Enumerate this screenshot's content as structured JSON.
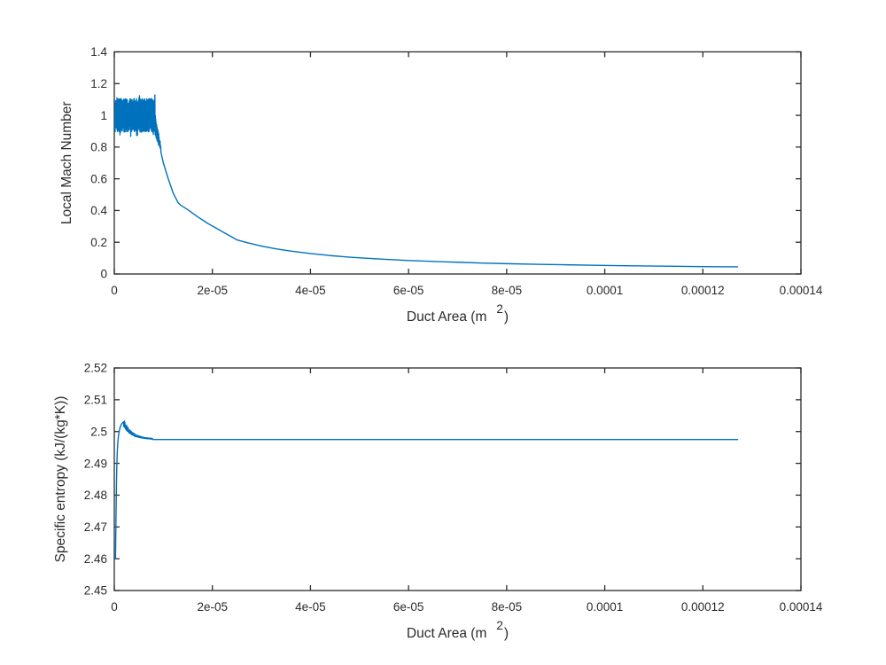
{
  "figure": {
    "background": "#ffffff",
    "axis_color": "#2b2b2b",
    "line_color": "#0072BD"
  },
  "chart_data": [
    {
      "id": "mach-chart",
      "type": "line",
      "title": "",
      "xlabel_main": "Duct Area (m",
      "xlabel_sup": "2",
      "xlabel_close": ")",
      "ylabel": "Local Mach Number",
      "xlim": [
        0,
        0.00014
      ],
      "ylim": [
        0,
        1.4
      ],
      "grid": false,
      "legend": null,
      "x_tick_values": [
        0,
        2e-05,
        4e-05,
        6e-05,
        8e-05,
        0.0001,
        0.00012,
        0.00014
      ],
      "x_tick_labels": [
        "0",
        "2e-05",
        "4e-05",
        "6e-05",
        "8e-05",
        "0.0001",
        "0.00012",
        "0.00014"
      ],
      "y_tick_values": [
        0,
        0.2,
        0.4,
        0.6,
        0.8,
        1,
        1.2,
        1.4
      ],
      "y_tick_labels": [
        "0",
        "0.2",
        "0.4",
        "0.6",
        "0.8",
        "1",
        "1.2",
        "1.4"
      ],
      "series": [
        {
          "name": "Local Mach Number",
          "color": "#0072BD",
          "segments": [
            {
              "kind": "noise",
              "x0": 1.5e-07,
              "x1": 8.3e-06,
              "n": 380,
              "mean0": 1.0,
              "mean1": 1.0,
              "amp0": 0.105,
              "amp1": 0.105,
              "decay": "linear",
              "seed": 7
            },
            {
              "kind": "noise",
              "x0": 8.3e-06,
              "x1": 9.5e-06,
              "n": 36,
              "mean0": 0.94,
              "mean1": 0.79,
              "amp0": 0.075,
              "amp1": 0.012,
              "decay": "linear",
              "seed": 11
            },
            {
              "kind": "points",
              "points": [
                [
                  9.5e-06,
                  0.77
                ],
                [
                  1e-05,
                  0.7
                ],
                [
                  1.1e-05,
                  0.6
                ],
                [
                  1.2e-05,
                  0.51
                ],
                [
                  1.3e-05,
                  0.45
                ],
                [
                  1.35e-05,
                  0.435
                ],
                [
                  1.5e-05,
                  0.405
                ],
                [
                  1.7e-05,
                  0.36
                ],
                [
                  1.9e-05,
                  0.32
                ],
                [
                  2.1e-05,
                  0.285
                ],
                [
                  2.3e-05,
                  0.25
                ],
                [
                  2.5e-05,
                  0.215
                ],
                [
                  2.7e-05,
                  0.198
                ],
                [
                  3e-05,
                  0.176
                ],
                [
                  3.3e-05,
                  0.158
                ],
                [
                  3.6e-05,
                  0.144
                ],
                [
                  4e-05,
                  0.129
                ],
                [
                  4.4e-05,
                  0.116
                ],
                [
                  4.8e-05,
                  0.106
                ],
                [
                  5.2e-05,
                  0.098
                ],
                [
                  5.6e-05,
                  0.091
                ],
                [
                  6e-05,
                  0.085
                ],
                [
                  6.5e-05,
                  0.079
                ],
                [
                  7e-05,
                  0.074
                ],
                [
                  7.5e-05,
                  0.069
                ],
                [
                  8e-05,
                  0.065
                ],
                [
                  8.6e-05,
                  0.061
                ],
                [
                  9.2e-05,
                  0.058
                ],
                [
                  9.8e-05,
                  0.055
                ],
                [
                  0.000104,
                  0.052
                ],
                [
                  0.00011,
                  0.05
                ],
                [
                  0.000116,
                  0.048
                ],
                [
                  0.000122,
                  0.046
                ],
                [
                  0.0001271,
                  0.045
                ]
              ]
            }
          ]
        }
      ]
    },
    {
      "id": "entropy-chart",
      "type": "line",
      "title": "",
      "xlabel_main": "Duct Area (m",
      "xlabel_sup": "2",
      "xlabel_close": ")",
      "ylabel": "Specific entropy (kJ/(kg*K))",
      "xlim": [
        0,
        0.00014
      ],
      "ylim": [
        2.45,
        2.52
      ],
      "grid": false,
      "legend": null,
      "x_tick_values": [
        0,
        2e-05,
        4e-05,
        6e-05,
        8e-05,
        0.0001,
        0.00012,
        0.00014
      ],
      "x_tick_labels": [
        "0",
        "2e-05",
        "4e-05",
        "6e-05",
        "8e-05",
        "0.0001",
        "0.00012",
        "0.00014"
      ],
      "y_tick_values": [
        2.45,
        2.46,
        2.47,
        2.48,
        2.49,
        2.5,
        2.51,
        2.52
      ],
      "y_tick_labels": [
        "2.45",
        "2.46",
        "2.47",
        "2.48",
        "2.49",
        "2.5",
        "2.51",
        "2.52"
      ],
      "series": [
        {
          "name": "Specific entropy",
          "color": "#0072BD",
          "segments": [
            {
              "kind": "points",
              "points": [
                [
                  2.5e-07,
                  2.46
                ],
                [
                  3e-07,
                  2.4665
                ],
                [
                  3.5e-07,
                  2.473
                ],
                [
                  4e-07,
                  2.479
                ],
                [
                  4.5e-07,
                  2.484
                ],
                [
                  5e-07,
                  2.4885
                ],
                [
                  6e-07,
                  2.4933
                ],
                [
                  7e-07,
                  2.4962
                ],
                [
                  8.5e-07,
                  2.4986
                ],
                [
                  1e-06,
                  2.5001
                ],
                [
                  1.2e-06,
                  2.5014
                ],
                [
                  1.45e-06,
                  2.5023
                ],
                [
                  1.7e-06,
                  2.5028
                ],
                [
                  1.9e-06,
                  2.503
                ]
              ]
            },
            {
              "kind": "noise",
              "x0": 1.9e-06,
              "x1": 7.8e-06,
              "n": 140,
              "mean0": 2.5026,
              "mean1": 2.4976,
              "amp0": 0.0011,
              "amp1": 8e-05,
              "decay": "exp",
              "seed": 23
            },
            {
              "kind": "points",
              "points": [
                [
                  7.8e-06,
                  2.4975
                ],
                [
                  0.0001271,
                  2.4975
                ]
              ]
            }
          ]
        }
      ]
    }
  ]
}
